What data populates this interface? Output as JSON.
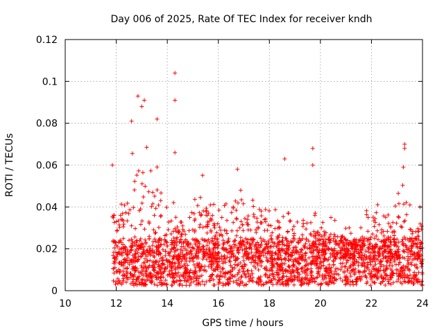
{
  "chart_data": {
    "type": "scatter",
    "title": "Day 006 of 2025, Rate Of TEC Index for receiver kndh",
    "xlabel": "GPS time / hours",
    "ylabel": "ROTI / TECUs",
    "xlim": [
      10,
      24
    ],
    "ylim": [
      0,
      0.12
    ],
    "xticks": [
      "10",
      "12",
      "14",
      "16",
      "18",
      "20",
      "22",
      "24"
    ],
    "yticks": [
      "0",
      "0.02",
      "0.04",
      "0.06",
      "0.08",
      "0.1",
      "0.12"
    ],
    "grid": true,
    "marker": "plus",
    "series_color": "#ff0000",
    "x_range_observed": [
      11.85,
      24.0
    ],
    "notable_points": [
      {
        "x": 11.85,
        "y": 0.06
      },
      {
        "x": 12.85,
        "y": 0.093
      },
      {
        "x": 13.1,
        "y": 0.091
      },
      {
        "x": 13.0,
        "y": 0.088
      },
      {
        "x": 12.6,
        "y": 0.081
      },
      {
        "x": 13.6,
        "y": 0.082
      },
      {
        "x": 14.3,
        "y": 0.104
      },
      {
        "x": 14.3,
        "y": 0.091
      },
      {
        "x": 14.3,
        "y": 0.066
      },
      {
        "x": 16.75,
        "y": 0.058
      },
      {
        "x": 18.6,
        "y": 0.063
      },
      {
        "x": 19.7,
        "y": 0.068
      },
      {
        "x": 19.7,
        "y": 0.06
      },
      {
        "x": 23.3,
        "y": 0.07
      },
      {
        "x": 23.3,
        "y": 0.068
      },
      {
        "x": 23.25,
        "y": 0.059
      },
      {
        "x": 23.9,
        "y": 0.04
      }
    ],
    "envelope": [
      {
        "x": 11.9,
        "ymax": 0.052
      },
      {
        "x": 12.2,
        "ymax": 0.045
      },
      {
        "x": 12.4,
        "ymax": 0.05
      },
      {
        "x": 12.6,
        "ymax": 0.075
      },
      {
        "x": 12.9,
        "ymax": 0.06
      },
      {
        "x": 13.2,
        "ymax": 0.07
      },
      {
        "x": 13.5,
        "ymax": 0.062
      },
      {
        "x": 13.8,
        "ymax": 0.058
      },
      {
        "x": 14.1,
        "ymax": 0.048
      },
      {
        "x": 14.5,
        "ymax": 0.04
      },
      {
        "x": 15.0,
        "ymax": 0.038
      },
      {
        "x": 15.3,
        "ymax": 0.06
      },
      {
        "x": 15.7,
        "ymax": 0.045
      },
      {
        "x": 16.2,
        "ymax": 0.04
      },
      {
        "x": 16.7,
        "ymax": 0.056
      },
      {
        "x": 17.2,
        "ymax": 0.04
      },
      {
        "x": 17.5,
        "ymax": 0.052
      },
      {
        "x": 18.0,
        "ymax": 0.04
      },
      {
        "x": 18.5,
        "ymax": 0.044
      },
      {
        "x": 19.0,
        "ymax": 0.038
      },
      {
        "x": 19.5,
        "ymax": 0.045
      },
      {
        "x": 20.0,
        "ymax": 0.038
      },
      {
        "x": 20.5,
        "ymax": 0.036
      },
      {
        "x": 21.0,
        "ymax": 0.032
      },
      {
        "x": 21.5,
        "ymax": 0.03
      },
      {
        "x": 22.0,
        "ymax": 0.045
      },
      {
        "x": 22.5,
        "ymax": 0.038
      },
      {
        "x": 23.0,
        "ymax": 0.045
      },
      {
        "x": 23.3,
        "ymax": 0.058
      },
      {
        "x": 23.7,
        "ymax": 0.035
      },
      {
        "x": 24.0,
        "ymax": 0.04
      }
    ],
    "typical_range": [
      0.004,
      0.025
    ]
  }
}
